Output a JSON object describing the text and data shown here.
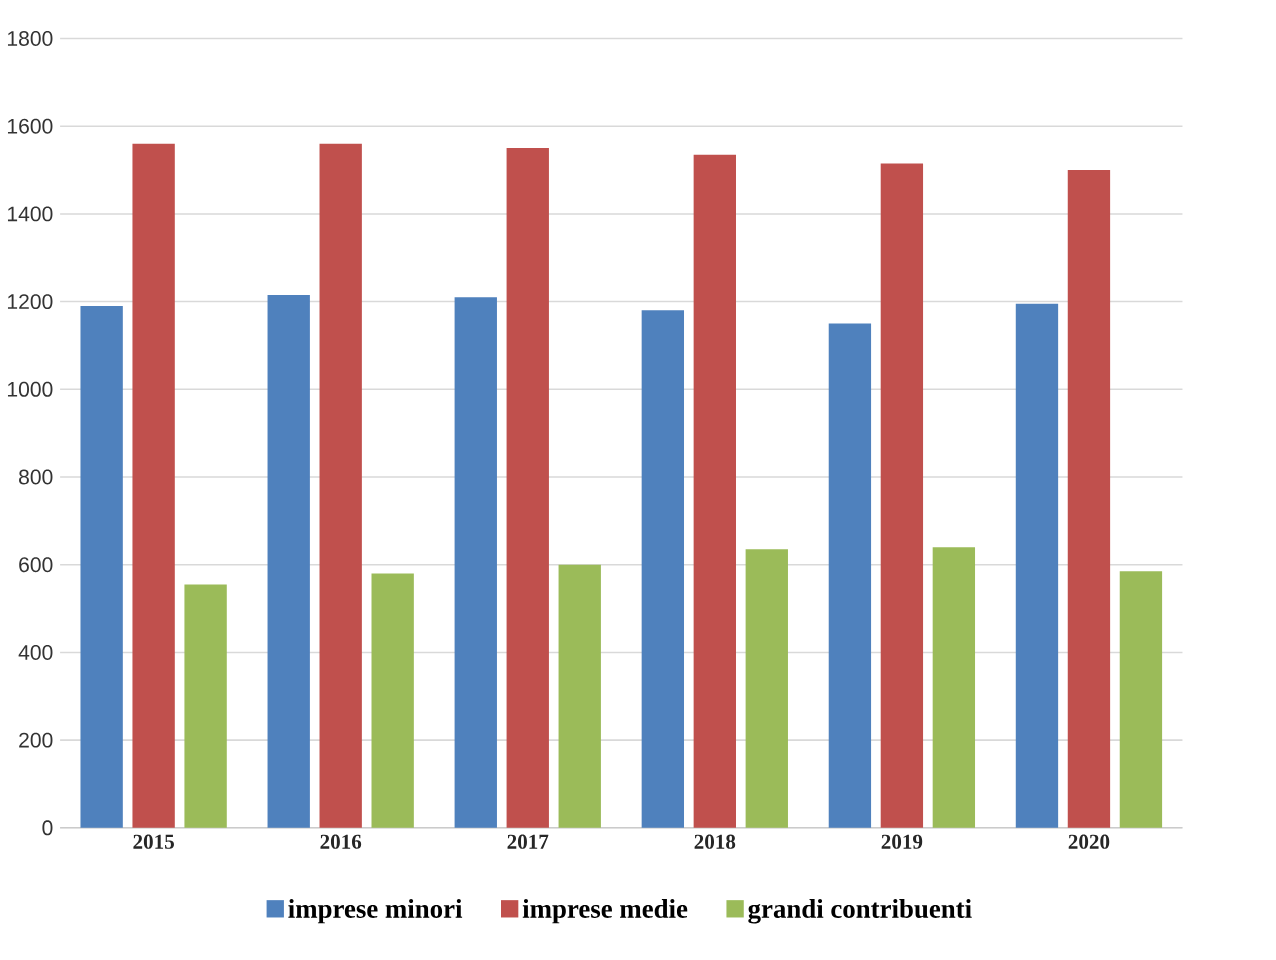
{
  "chart_data": {
    "type": "bar",
    "categories": [
      "2015",
      "2016",
      "2017",
      "2018",
      "2019",
      "2020"
    ],
    "series": [
      {
        "name": "imprese minori",
        "color": "#4f81bd",
        "values": [
          1190,
          1215,
          1210,
          1180,
          1150,
          1195
        ]
      },
      {
        "name": "imprese medie",
        "color": "#c0504d",
        "values": [
          1560,
          1560,
          1550,
          1535,
          1515,
          1500
        ]
      },
      {
        "name": "grandi contribuenti",
        "color": "#9bbb59",
        "values": [
          555,
          580,
          600,
          635,
          640,
          585
        ]
      }
    ],
    "ylim": [
      0,
      1800
    ],
    "yticks": [
      0,
      200,
      400,
      600,
      800,
      1000,
      1200,
      1400,
      1600,
      1800
    ],
    "grid": "y",
    "legend": "bottom"
  }
}
